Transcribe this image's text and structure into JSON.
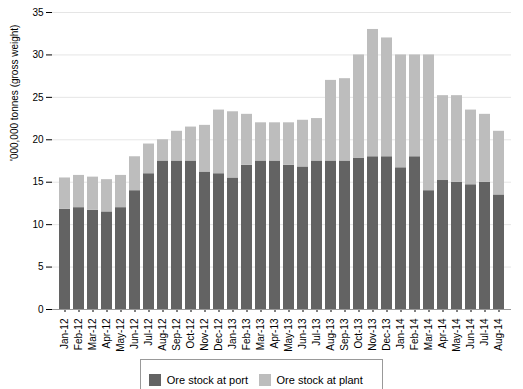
{
  "chart_data": {
    "type": "bar",
    "stacked": true,
    "categories": [
      "Jan-12",
      "Feb-12",
      "Mar-12",
      "Apr-12",
      "May-12",
      "Jun-12",
      "Jul-12",
      "Aug-12",
      "Sep-12",
      "Oct-12",
      "Nov-12",
      "Dec-12",
      "Jan-13",
      "Feb-13",
      "Mar-13",
      "Apr-13",
      "May-13",
      "Jun-13",
      "Jul-13",
      "Aug-13",
      "Sep-13",
      "Oct-13",
      "Nov-13",
      "Dec-13",
      "Jan-14",
      "Feb-14",
      "Mar-14",
      "Apr-14",
      "May-14",
      "Jun-14",
      "Jul-14",
      "Aug-14"
    ],
    "series": [
      {
        "name": "Ore stock at port",
        "color": "#636363",
        "values": [
          11.8,
          12.0,
          11.7,
          11.5,
          12.0,
          14.0,
          16.0,
          17.5,
          17.5,
          17.5,
          16.2,
          16.0,
          15.5,
          17.0,
          17.5,
          17.5,
          17.0,
          16.8,
          17.5,
          17.5,
          17.5,
          17.8,
          18.0,
          18.0,
          16.7,
          18.0,
          14.0,
          15.2,
          15.0,
          14.7,
          15.0,
          13.5
        ]
      },
      {
        "name": "Ore stock at plant",
        "color": "#bdbdbd",
        "values": [
          3.7,
          3.8,
          3.9,
          3.8,
          3.8,
          4.0,
          3.5,
          2.5,
          3.5,
          4.0,
          5.5,
          7.5,
          7.8,
          6.0,
          4.5,
          4.5,
          5.0,
          5.5,
          5.0,
          9.5,
          9.7,
          12.2,
          15.0,
          14.0,
          13.3,
          12.0,
          16.0,
          10.0,
          10.2,
          8.8,
          8.0,
          7.5
        ]
      }
    ],
    "ylabel": "'000,000 tonnes (gross weight)",
    "ylim": [
      0,
      35
    ],
    "yticks": [
      0,
      5,
      10,
      15,
      20,
      25,
      30,
      35
    ],
    "grid": true,
    "legend": "bottom"
  }
}
